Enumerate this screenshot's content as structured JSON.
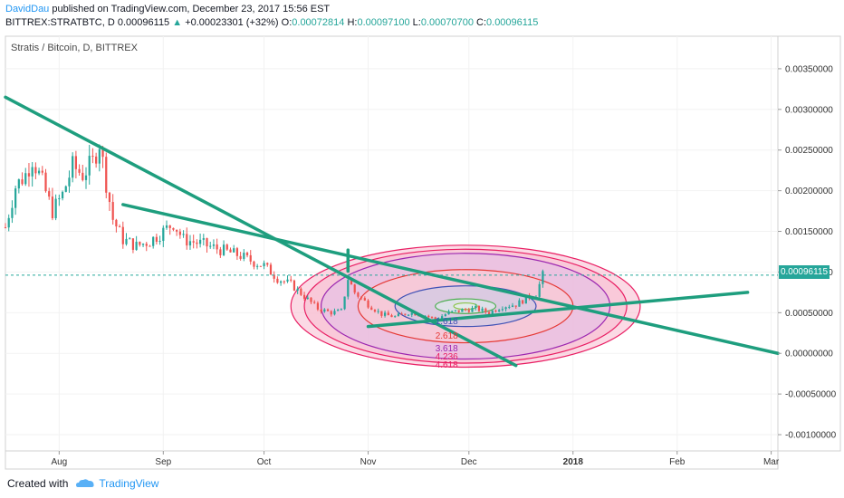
{
  "header": {
    "author": "DavidDau",
    "published_text": " published on TradingView.com, December 23, 2017 15:56 EST",
    "symbol": "BITTREX:STRATBTC, D",
    "last": "0.00096115",
    "change_arrow": "▲",
    "change": "+0.00023301 (+32%)",
    "o_label": "O:",
    "o_value": "0.00072814",
    "h_label": "H:",
    "h_value": "0.00097100",
    "l_label": "L:",
    "l_value": "0.00070700",
    "c_label": "C:",
    "c_value": "0.00096115"
  },
  "footer": {
    "created_with": "Created with",
    "brand": "TradingView"
  },
  "colors": {
    "up": "#26a69a",
    "down": "#ef5350",
    "trend": "#1e9e7e",
    "accent": "#2196f3"
  },
  "chart_data": {
    "type": "candlestick",
    "title": "Stratis / Bitcoin, D, BITTREX",
    "ylim": [
      -0.0012,
      0.0039
    ],
    "yticks": [
      "0.00350000",
      "0.00300000",
      "0.00250000",
      "0.00200000",
      "0.00150000",
      "0.00100000",
      "0.00050000",
      "0.00000000",
      "-0.00050000",
      "-0.00100000"
    ],
    "ytick_values": [
      0.0035,
      0.003,
      0.0025,
      0.002,
      0.0015,
      0.001,
      0.0005,
      0,
      -0.0005,
      -0.001
    ],
    "x_start": "2017-07-16",
    "x_end": "2018-03-03",
    "xticks": [
      {
        "label": "Aug",
        "date": "2017-08-01"
      },
      {
        "label": "Sep",
        "date": "2017-09-01"
      },
      {
        "label": "Oct",
        "date": "2017-10-01"
      },
      {
        "label": "Nov",
        "date": "2017-11-01"
      },
      {
        "label": "Dec",
        "date": "2017-12-01"
      },
      {
        "label": "2018",
        "date": "2018-01-01"
      },
      {
        "label": "Feb",
        "date": "2018-02-01"
      },
      {
        "label": "Mar",
        "date": "2018-03-01"
      }
    ],
    "last_price": 0.00096115,
    "last_price_label": "0.00096115",
    "close_path": [
      [
        "2017-07-16",
        0.00155
      ],
      [
        "2017-07-19",
        0.00205
      ],
      [
        "2017-07-22",
        0.0022
      ],
      [
        "2017-07-24",
        0.0024
      ],
      [
        "2017-07-27",
        0.0021
      ],
      [
        "2017-07-30",
        0.00175
      ],
      [
        "2017-08-02",
        0.00195
      ],
      [
        "2017-08-05",
        0.0023
      ],
      [
        "2017-08-08",
        0.0022
      ],
      [
        "2017-08-11",
        0.00235
      ],
      [
        "2017-08-13",
        0.0026
      ],
      [
        "2017-08-15",
        0.0021
      ],
      [
        "2017-08-17",
        0.00165
      ],
      [
        "2017-08-20",
        0.0014
      ],
      [
        "2017-08-24",
        0.00132
      ],
      [
        "2017-08-28",
        0.00138
      ],
      [
        "2017-09-01",
        0.0015
      ],
      [
        "2017-09-04",
        0.0016
      ],
      [
        "2017-09-07",
        0.0014
      ],
      [
        "2017-09-12",
        0.00135
      ],
      [
        "2017-09-16",
        0.0013
      ],
      [
        "2017-09-20",
        0.00125
      ],
      [
        "2017-09-24",
        0.0012
      ],
      [
        "2017-09-28",
        0.00112
      ],
      [
        "2017-10-01",
        0.00108
      ],
      [
        "2017-10-05",
        0.00092
      ],
      [
        "2017-10-09",
        0.00085
      ],
      [
        "2017-10-13",
        0.0007
      ],
      [
        "2017-10-17",
        0.00055
      ],
      [
        "2017-10-21",
        0.0005
      ],
      [
        "2017-10-24",
        0.00052
      ],
      [
        "2017-10-26",
        0.00092
      ],
      [
        "2017-10-28",
        0.00075
      ],
      [
        "2017-11-01",
        0.0006
      ],
      [
        "2017-11-05",
        0.00048
      ],
      [
        "2017-11-09",
        0.00045
      ],
      [
        "2017-11-13",
        0.0005
      ],
      [
        "2017-11-17",
        0.00048
      ],
      [
        "2017-11-21",
        0.00042
      ],
      [
        "2017-11-25",
        0.0005
      ],
      [
        "2017-11-29",
        0.00053
      ],
      [
        "2017-12-03",
        0.00055
      ],
      [
        "2017-12-07",
        0.0005
      ],
      [
        "2017-12-11",
        0.00058
      ],
      [
        "2017-12-15",
        0.0006
      ],
      [
        "2017-12-19",
        0.0007
      ],
      [
        "2017-12-21",
        0.00073
      ],
      [
        "2017-12-23",
        0.00096
      ]
    ],
    "fib_circles": {
      "center": [
        "2017-11-30",
        0.00058
      ],
      "levels": [
        {
          "label": "0.618",
          "rx_days": 3.5,
          "ry": 4e-05
        },
        {
          "label": "1",
          "rx_days": 9,
          "ry": 9e-05
        },
        {
          "label": "1.618",
          "rx_days": 21,
          "ry": 0.00025
        },
        {
          "label": "2.618",
          "rx_days": 32,
          "ry": 0.00045
        },
        {
          "label": "3.618",
          "rx_days": 43,
          "ry": 0.00065
        },
        {
          "label": "4.236",
          "rx_days": 48,
          "ry": 0.0007
        },
        {
          "label": "4.618",
          "rx_days": 52,
          "ry": 0.00075
        }
      ],
      "visible_labels": [
        "1.618",
        "2.618",
        "3.618",
        "4.236",
        "4.618"
      ]
    },
    "trendlines": [
      {
        "from": [
          "2017-07-16",
          0.00315
        ],
        "to": [
          "2017-12-15",
          -0.00015
        ]
      },
      {
        "from": [
          "2017-08-20",
          0.00183
        ],
        "to": [
          "2018-03-03",
          0.0
        ]
      },
      {
        "from": [
          "2017-11-01",
          0.00033
        ],
        "to": [
          "2018-02-22",
          0.00075
        ]
      },
      {
        "from": [
          "2017-10-26",
          0.00127
        ],
        "to": [
          "2017-10-26",
          0.00101
        ]
      }
    ]
  }
}
